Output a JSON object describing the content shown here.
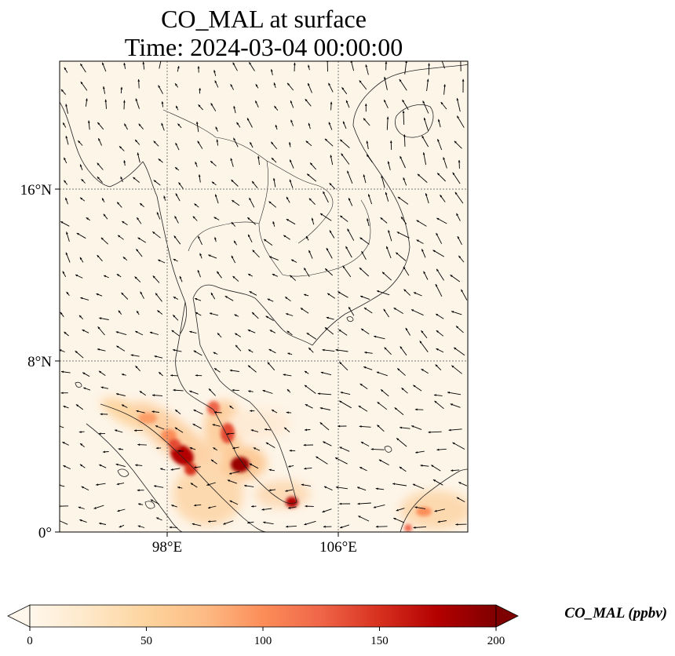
{
  "title": {
    "line1": "CO_MAL at surface",
    "line2": "Time: 2024-03-04 00:00:00"
  },
  "map": {
    "lon_range_deg_e": [
      90.5,
      119
    ],
    "lat_range_deg_n": [
      0,
      33
    ],
    "gridlines": "dotted",
    "x_ticks": [
      {
        "lon": 98,
        "label": "98°E"
      },
      {
        "lon": 106,
        "label": "106°E"
      }
    ],
    "y_ticks": [
      {
        "lat": 16,
        "label": "16°N"
      },
      {
        "lat": 8,
        "label": "8°N"
      },
      {
        "lat": 0,
        "label": "0°"
      }
    ],
    "field": "CO_MAL",
    "overlay": "wind vectors (black arrows)",
    "colors": {
      "background": "#fdf5e8",
      "coastline": "#222222",
      "gridline": "#777777"
    }
  },
  "colorbar": {
    "label": "CO_MAL (ppbv)",
    "min": 0,
    "max": 200,
    "extend": "both",
    "ticks": [
      {
        "value": 0,
        "label": "0"
      },
      {
        "value": 50,
        "label": "50"
      },
      {
        "value": 100,
        "label": "100"
      },
      {
        "value": 150,
        "label": "150"
      },
      {
        "value": 200,
        "label": "200"
      }
    ],
    "colormap": "OrRd",
    "stops": [
      "#fff7ec",
      "#fee8c8",
      "#fdd49e",
      "#fdbb84",
      "#fc8d59",
      "#ef6548",
      "#d7301f",
      "#b30000",
      "#7f0000"
    ]
  }
}
